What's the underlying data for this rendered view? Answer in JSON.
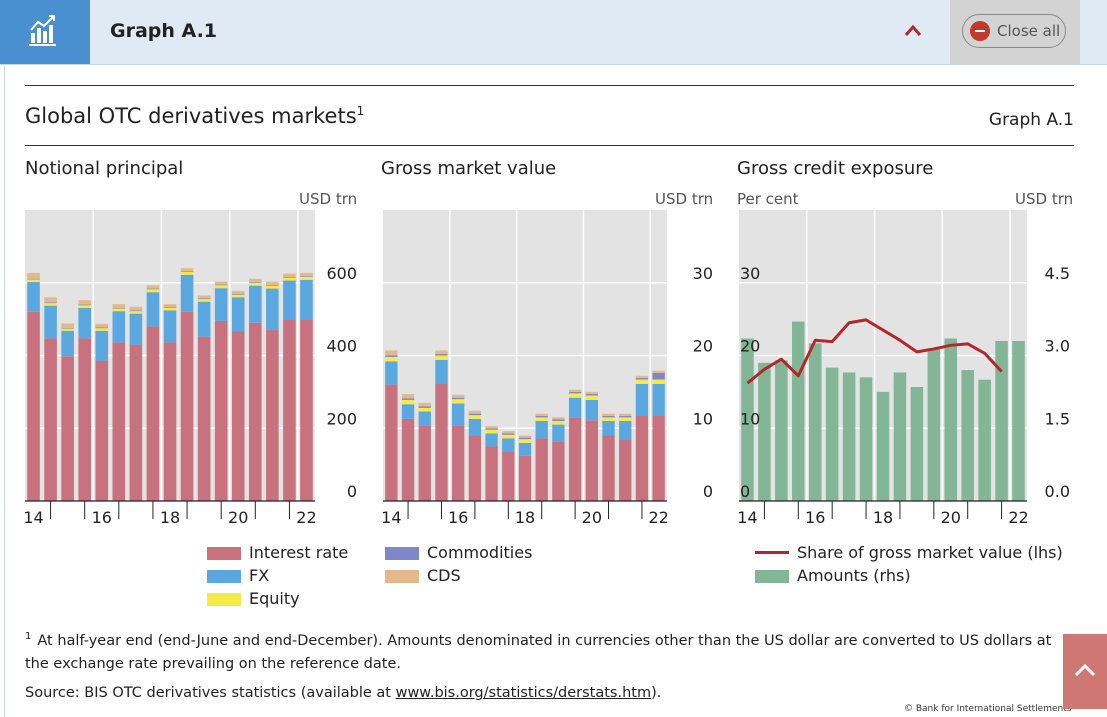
{
  "topbar": {
    "title": "Graph A.1",
    "close_label": "Close all"
  },
  "header": {
    "title": "Global OTC derivatives markets",
    "title_sup": "1",
    "graph_id": "Graph A.1"
  },
  "colors": {
    "interest": "#c9727f",
    "fx": "#5ba8e0",
    "equity": "#f5ea48",
    "commodities": "#7f87c9",
    "cds": "#e3b88a",
    "amounts": "#82b696",
    "share": "#b3272c",
    "plot_bg": "#e3e3e3",
    "grid": "#ffffff"
  },
  "chart_data": [
    {
      "id": "notional",
      "type": "bar",
      "stacked": true,
      "title": "Notional principal",
      "ylabel_right": "USD trn",
      "ylim": [
        0,
        800
      ],
      "yticks": [
        "0",
        "200",
        "400",
        "600"
      ],
      "ytick_values": [
        0,
        200,
        400,
        600
      ],
      "xticks": [
        "14",
        "16",
        "18",
        "20",
        "22"
      ],
      "xtick_positions": [
        0,
        4,
        8,
        12,
        16
      ],
      "grid_positions": [
        3.5,
        7.5,
        11.5,
        15.5
      ],
      "categories": [
        "H1 14",
        "H2 14",
        "H1 15",
        "H2 15",
        "H1 16",
        "H2 16",
        "H1 17",
        "H2 17",
        "H1 18",
        "H2 18",
        "H1 19",
        "H2 19",
        "H1 20",
        "H2 20",
        "H1 21",
        "H2 21",
        "H1 22"
      ],
      "series": [
        {
          "name": "Interest rate",
          "key": "interest",
          "values": [
            520,
            447,
            398,
            447,
            386,
            436,
            430,
            480,
            436,
            520,
            452,
            495,
            466,
            490,
            470,
            500,
            500
          ]
        },
        {
          "name": "FX",
          "key": "fx",
          "values": [
            82,
            90,
            70,
            84,
            82,
            86,
            85,
            94,
            88,
            102,
            96,
            90,
            94,
            102,
            114,
            106,
            108
          ]
        },
        {
          "name": "Equity",
          "key": "equity",
          "values": [
            7,
            7,
            6,
            7,
            7,
            7,
            7,
            8,
            7,
            8,
            7,
            8,
            7,
            8,
            8,
            8,
            8
          ]
        },
        {
          "name": "Commodities",
          "key": "commodities",
          "values": [
            2,
            2,
            2,
            2,
            2,
            2,
            2,
            2,
            2,
            2,
            2,
            2,
            2,
            2,
            2,
            2,
            2
          ]
        },
        {
          "name": "CDS",
          "key": "cds",
          "values": [
            16,
            14,
            12,
            12,
            10,
            10,
            10,
            9,
            8,
            8,
            8,
            8,
            8,
            9,
            9,
            9,
            9
          ]
        }
      ]
    },
    {
      "id": "gmv",
      "type": "bar",
      "stacked": true,
      "title": "Gross market value",
      "ylabel_right": "USD trn",
      "ylim": [
        0,
        40
      ],
      "yticks": [
        "0",
        "10",
        "20",
        "30"
      ],
      "ytick_values": [
        0,
        10,
        20,
        30
      ],
      "xticks": [
        "14",
        "16",
        "18",
        "20",
        "22"
      ],
      "xtick_positions": [
        0,
        4,
        8,
        12,
        16
      ],
      "grid_positions": [
        3.5,
        7.5,
        11.5,
        15.5
      ],
      "categories": [
        "H1 14",
        "H2 14",
        "H1 15",
        "H2 15",
        "H1 16",
        "H2 16",
        "H1 17",
        "H2 17",
        "H1 18",
        "H2 18",
        "H1 19",
        "H2 19",
        "H1 20",
        "H2 20",
        "H1 21",
        "H2 21",
        "H1 22"
      ],
      "series": [
        {
          "name": "Interest rate",
          "key": "interest",
          "values": [
            16,
            11.3,
            10.4,
            16.2,
            10.4,
            9,
            7.5,
            6.8,
            6.2,
            8.6,
            8.2,
            11.5,
            11.1,
            9,
            8.5,
            11.8,
            11.8
          ]
        },
        {
          "name": "FX",
          "key": "fx",
          "values": [
            3.2,
            2,
            1.9,
            3.2,
            3,
            2.3,
            1.8,
            1.8,
            1.8,
            2.4,
            2.3,
            2.7,
            2.8,
            2,
            2.5,
            4.3,
            4.3
          ]
        },
        {
          "name": "Equity",
          "key": "equity",
          "values": [
            0.6,
            0.6,
            0.5,
            0.6,
            0.6,
            0.5,
            0.5,
            0.5,
            0.5,
            0.5,
            0.5,
            0.6,
            0.6,
            0.5,
            0.5,
            0.6,
            0.6
          ]
        },
        {
          "name": "Commodities",
          "key": "commodities",
          "values": [
            0.2,
            0.2,
            0.2,
            0.2,
            0.2,
            0.2,
            0.2,
            0.2,
            0.2,
            0.2,
            0.2,
            0.2,
            0.2,
            0.2,
            0.2,
            0.2,
            0.9
          ]
        },
        {
          "name": "CDS",
          "key": "cds",
          "values": [
            0.7,
            0.6,
            0.5,
            0.5,
            0.4,
            0.4,
            0.3,
            0.3,
            0.3,
            0.3,
            0.3,
            0.3,
            0.3,
            0.3,
            0.3,
            0.3,
            0.3
          ]
        }
      ]
    },
    {
      "id": "gce",
      "type": "bar+line",
      "title": "Gross credit exposure",
      "ylabel_left": "Per cent",
      "ylabel_right": "USD trn",
      "ylim_left": [
        0,
        40
      ],
      "ylim_right": [
        0,
        6
      ],
      "yticks_left": [
        "0",
        "10",
        "20",
        "30"
      ],
      "ytick_left_values": [
        0,
        10,
        20,
        30
      ],
      "yticks_right": [
        "0.0",
        "1.5",
        "3.0",
        "4.5"
      ],
      "ytick_right_values": [
        0,
        1.5,
        3,
        4.5
      ],
      "xticks": [
        "14",
        "16",
        "18",
        "20",
        "22"
      ],
      "xtick_positions": [
        0,
        4,
        8,
        12,
        16
      ],
      "grid_positions": [
        3.5,
        7.5,
        11.5,
        15.5
      ],
      "categories": [
        "H1 14",
        "H2 14",
        "H1 15",
        "H2 15",
        "H1 16",
        "H2 16",
        "H1 17",
        "H2 17",
        "H1 18",
        "H2 18",
        "H1 19",
        "H2 19",
        "H1 20",
        "H2 20",
        "H1 21",
        "H2 21",
        "H1 22"
      ],
      "bars": {
        "name": "Amounts (rhs)",
        "key": "amounts",
        "values": [
          3.35,
          2.85,
          2.9,
          3.7,
          3.25,
          2.75,
          2.65,
          2.55,
          2.25,
          2.65,
          2.35,
          3.15,
          3.35,
          2.7,
          2.5,
          3.3,
          3.3
        ]
      },
      "line": {
        "name": "Share of gross market value (lhs)",
        "key": "share",
        "values": [
          16.2,
          18.1,
          19.5,
          17.2,
          22.1,
          21.9,
          24.5,
          24.9,
          23.5,
          22.1,
          20.5,
          20.9,
          21.4,
          21.6,
          20.3,
          17.8,
          null
        ]
      }
    }
  ],
  "legends": {
    "left": [
      {
        "label": "Interest rate",
        "key": "interest"
      },
      {
        "label": "FX",
        "key": "fx"
      },
      {
        "label": "Equity",
        "key": "equity"
      }
    ],
    "middle": [
      {
        "label": "Commodities",
        "key": "commodities"
      },
      {
        "label": "CDS",
        "key": "cds"
      }
    ],
    "right": [
      {
        "label": "Share of gross market value (lhs)",
        "key": "share",
        "kind": "line"
      },
      {
        "label": "Amounts (rhs)",
        "key": "amounts",
        "kind": "box"
      }
    ]
  },
  "footnote": {
    "marker": "1",
    "text": "At half-year end (end-June and end-December). Amounts denominated in currencies other than the US dollar are converted to US dollars at the exchange rate prevailing on the reference date."
  },
  "source": {
    "prefix": "Source: BIS OTC derivatives statistics (available at ",
    "link": "www.bis.org/statistics/derstats.htm",
    "suffix": ")."
  },
  "copyright": "© Bank for International Settlements"
}
